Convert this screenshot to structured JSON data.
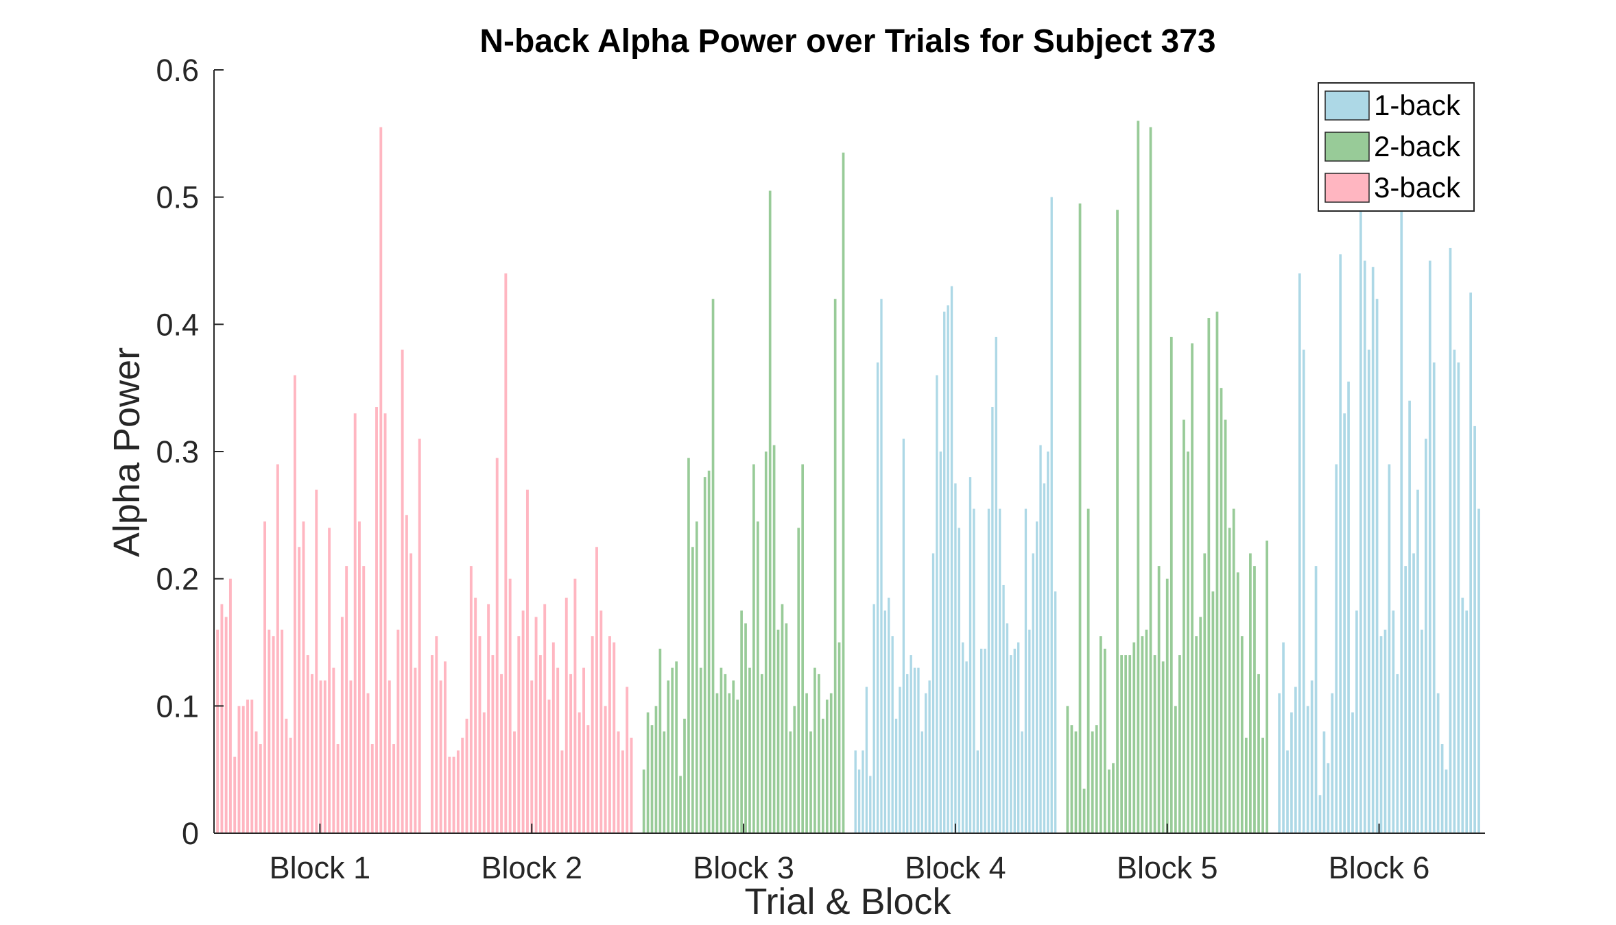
{
  "chart_data": {
    "type": "bar",
    "title": "N-back Alpha Power over Trials for Subject 373",
    "xlabel": "Trial & Block",
    "ylabel": "Alpha Power",
    "ylim": [
      0,
      0.6
    ],
    "yticks": [
      "0",
      "0.1",
      "0.2",
      "0.3",
      "0.4",
      "0.5",
      "0.6"
    ],
    "grid": false,
    "legend_position": "top-right",
    "legend": [
      {
        "label": "1-back",
        "color": "#ADD8E6"
      },
      {
        "label": "2-back",
        "color": "#98CB98"
      },
      {
        "label": "3-back",
        "color": "#FFB6C1"
      }
    ],
    "blocks": [
      {
        "label": "Block 1",
        "condition": "3-back",
        "values": [
          0.16,
          0.18,
          0.17,
          0.2,
          0.06,
          0.1,
          0.1,
          0.105,
          0.105,
          0.08,
          0.07,
          0.245,
          0.16,
          0.155,
          0.29,
          0.16,
          0.09,
          0.075,
          0.36,
          0.225,
          0.245,
          0.14,
          0.125,
          0.27,
          0.12,
          0.12,
          0.24,
          0.13,
          0.07,
          0.17,
          0.21,
          0.12,
          0.33,
          0.245,
          0.21,
          0.11,
          0.07,
          0.335,
          0.555,
          0.33,
          0.12,
          0.07,
          0.16,
          0.38,
          0.25,
          0.22,
          0.13,
          0.31
        ]
      },
      {
        "label": "Block 2",
        "condition": "3-back",
        "values": [
          0.14,
          0.155,
          0.12,
          0.135,
          0.06,
          0.06,
          0.065,
          0.075,
          0.09,
          0.21,
          0.185,
          0.155,
          0.095,
          0.18,
          0.14,
          0.295,
          0.125,
          0.44,
          0.2,
          0.08,
          0.155,
          0.175,
          0.27,
          0.12,
          0.17,
          0.14,
          0.18,
          0.105,
          0.15,
          0.13,
          0.065,
          0.185,
          0.125,
          0.2,
          0.095,
          0.13,
          0.085,
          0.155,
          0.225,
          0.175,
          0.1,
          0.155,
          0.15,
          0.08,
          0.065,
          0.115,
          0.075
        ]
      },
      {
        "label": "Block 3",
        "condition": "2-back",
        "values": [
          0.05,
          0.095,
          0.085,
          0.1,
          0.145,
          0.08,
          0.12,
          0.13,
          0.135,
          0.045,
          0.09,
          0.295,
          0.225,
          0.245,
          0.13,
          0.28,
          0.285,
          0.42,
          0.11,
          0.13,
          0.125,
          0.11,
          0.12,
          0.105,
          0.175,
          0.165,
          0.13,
          0.29,
          0.245,
          0.125,
          0.3,
          0.505,
          0.305,
          0.16,
          0.18,
          0.165,
          0.08,
          0.1,
          0.24,
          0.29,
          0.11,
          0.08,
          0.13,
          0.125,
          0.09,
          0.105,
          0.11,
          0.42,
          0.15,
          0.535
        ]
      },
      {
        "label": "Block 4",
        "condition": "1-back",
        "values": [
          0.065,
          0.05,
          0.065,
          0.115,
          0.045,
          0.18,
          0.37,
          0.42,
          0.175,
          0.185,
          0.155,
          0.09,
          0.115,
          0.31,
          0.125,
          0.14,
          0.13,
          0.13,
          0.08,
          0.11,
          0.12,
          0.22,
          0.36,
          0.3,
          0.41,
          0.415,
          0.43,
          0.275,
          0.24,
          0.15,
          0.135,
          0.28,
          0.255,
          0.065,
          0.145,
          0.145,
          0.255,
          0.335,
          0.39,
          0.255,
          0.195,
          0.165,
          0.14,
          0.145,
          0.15,
          0.08,
          0.255,
          0.16,
          0.22,
          0.245,
          0.305,
          0.275,
          0.3,
          0.5,
          0.19
        ]
      },
      {
        "label": "Block 5",
        "condition": "2-back",
        "values": [
          0.1,
          0.085,
          0.08,
          0.495,
          0.035,
          0.255,
          0.08,
          0.085,
          0.155,
          0.145,
          0.05,
          0.055,
          0.49,
          0.14,
          0.14,
          0.14,
          0.15,
          0.56,
          0.155,
          0.16,
          0.555,
          0.14,
          0.21,
          0.135,
          0.2,
          0.39,
          0.1,
          0.14,
          0.325,
          0.3,
          0.385,
          0.155,
          0.17,
          0.22,
          0.405,
          0.19,
          0.41,
          0.35,
          0.325,
          0.24,
          0.255,
          0.205,
          0.155,
          0.075,
          0.22,
          0.21,
          0.125,
          0.075,
          0.23
        ]
      },
      {
        "label": "Block 6",
        "condition": "1-back",
        "values": [
          0.11,
          0.15,
          0.065,
          0.095,
          0.115,
          0.44,
          0.38,
          0.1,
          0.12,
          0.21,
          0.03,
          0.08,
          0.055,
          0.11,
          0.29,
          0.455,
          0.33,
          0.355,
          0.095,
          0.175,
          0.49,
          0.45,
          0.38,
          0.445,
          0.42,
          0.155,
          0.16,
          0.29,
          0.175,
          0.125,
          0.49,
          0.21,
          0.34,
          0.22,
          0.27,
          0.16,
          0.31,
          0.45,
          0.37,
          0.11,
          0.07,
          0.05,
          0.46,
          0.38,
          0.37,
          0.185,
          0.175,
          0.425,
          0.32,
          0.255
        ]
      }
    ]
  }
}
